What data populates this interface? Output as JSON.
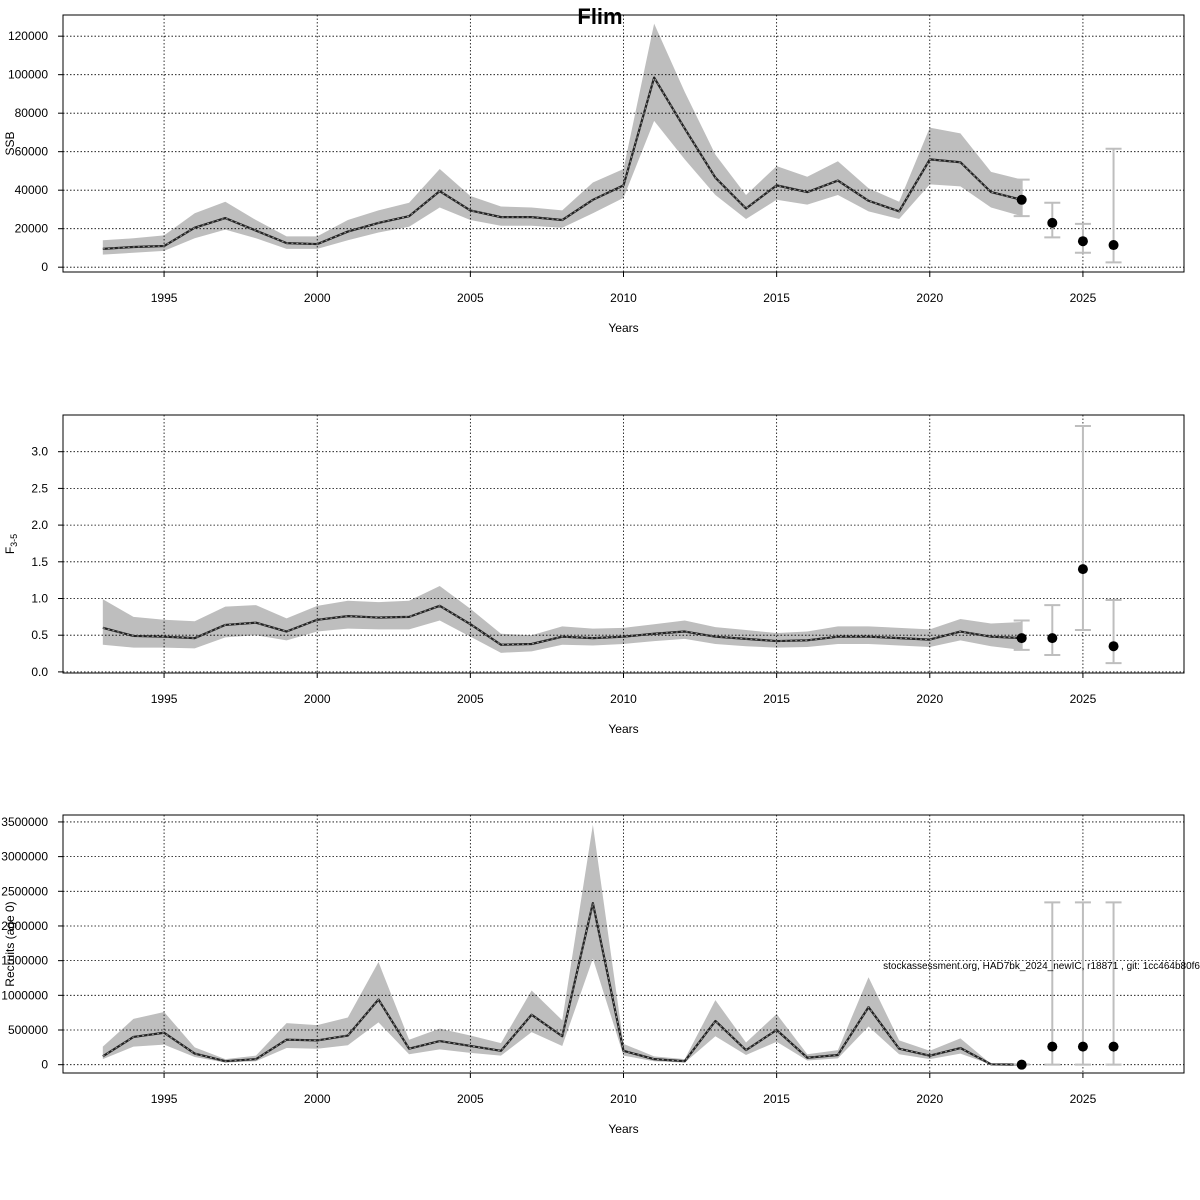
{
  "title": "Flim",
  "footer_note": "stockassessment.org, HAD7bk_2024_newIC, r18871 , git: 1cc464b80f6",
  "colors": {
    "band": "#bebebe",
    "line": "#000000",
    "point": "#000000",
    "errorbar": "#bebebe",
    "grid": "#000000"
  },
  "chart_data": [
    {
      "type": "line",
      "name": "ssb",
      "xlabel": "Years",
      "ylabel": "SSB",
      "xlim": [
        1991.7,
        2028.3
      ],
      "ylim": [
        -2500,
        131000
      ],
      "x_ticks": [
        1995,
        2000,
        2005,
        2010,
        2015,
        2020,
        2025
      ],
      "y_ticks": [
        0,
        20000,
        40000,
        60000,
        80000,
        100000,
        120000
      ],
      "y_tick_labels": [
        "0",
        "20000",
        "40000",
        "60000",
        "80000",
        "100000",
        "120000"
      ],
      "grid": true,
      "x": [
        1993,
        1994,
        1995,
        1996,
        1997,
        1998,
        1999,
        2000,
        2001,
        2002,
        2003,
        2004,
        2005,
        2006,
        2007,
        2008,
        2009,
        2010,
        2011,
        2012,
        2013,
        2014,
        2015,
        2016,
        2017,
        2018,
        2019,
        2020,
        2021,
        2022,
        2023
      ],
      "estimate": [
        9500,
        10500,
        11000,
        20500,
        25500,
        19000,
        12500,
        12000,
        18500,
        23000,
        26500,
        39500,
        29500,
        26000,
        26000,
        24500,
        35000,
        42500,
        98500,
        72000,
        46500,
        30500,
        42500,
        39000,
        45000,
        34500,
        29000,
        56000,
        54500,
        39000,
        35000
      ],
      "lower": [
        6500,
        7500,
        8500,
        15000,
        19500,
        15000,
        9500,
        9500,
        14000,
        18000,
        21000,
        31000,
        24500,
        21500,
        21500,
        20500,
        28000,
        36000,
        76000,
        56000,
        37500,
        25000,
        35000,
        32500,
        37500,
        29000,
        25000,
        43000,
        42000,
        31000,
        26500
      ],
      "upper": [
        14000,
        15000,
        16500,
        28000,
        34000,
        24500,
        16000,
        16000,
        24500,
        29500,
        33500,
        51000,
        37000,
        31500,
        31000,
        29500,
        44000,
        51000,
        126500,
        91000,
        58500,
        37500,
        52500,
        47000,
        55000,
        41000,
        34000,
        72500,
        69500,
        49500,
        45500
      ],
      "forecast": {
        "x": [
          2023,
          2024,
          2025,
          2026
        ],
        "median": [
          35000,
          23000,
          13500,
          11500
        ],
        "lower": [
          26500,
          15500,
          7500,
          2500
        ],
        "upper": [
          45500,
          33500,
          22500,
          61500
        ]
      }
    },
    {
      "type": "line",
      "name": "f",
      "xlabel": "Years",
      "ylabel": "F",
      "ylabel_sub": "3-5",
      "xlim": [
        1991.7,
        2028.3
      ],
      "ylim": [
        -0.015,
        3.5
      ],
      "x_ticks": [
        1995,
        2000,
        2005,
        2010,
        2015,
        2020,
        2025
      ],
      "y_ticks": [
        0,
        0.5,
        1.0,
        1.5,
        2.0,
        2.5,
        3.0
      ],
      "y_tick_labels": [
        "0.0",
        "0.5",
        "1.0",
        "1.5",
        "2.0",
        "2.5",
        "3.0"
      ],
      "grid": true,
      "x": [
        1993,
        1994,
        1995,
        1996,
        1997,
        1998,
        1999,
        2000,
        2001,
        2002,
        2003,
        2004,
        2005,
        2006,
        2007,
        2008,
        2009,
        2010,
        2011,
        2012,
        2013,
        2014,
        2015,
        2016,
        2017,
        2018,
        2019,
        2020,
        2021,
        2022,
        2023
      ],
      "estimate": [
        0.6,
        0.49,
        0.48,
        0.46,
        0.64,
        0.67,
        0.55,
        0.71,
        0.76,
        0.74,
        0.75,
        0.9,
        0.65,
        0.37,
        0.38,
        0.48,
        0.46,
        0.48,
        0.52,
        0.55,
        0.48,
        0.45,
        0.42,
        0.43,
        0.48,
        0.48,
        0.46,
        0.44,
        0.55,
        0.48,
        0.46
      ],
      "lower": [
        0.37,
        0.33,
        0.33,
        0.32,
        0.47,
        0.5,
        0.43,
        0.55,
        0.59,
        0.58,
        0.58,
        0.7,
        0.48,
        0.26,
        0.28,
        0.37,
        0.36,
        0.38,
        0.42,
        0.45,
        0.38,
        0.35,
        0.33,
        0.34,
        0.38,
        0.38,
        0.36,
        0.34,
        0.43,
        0.35,
        0.3
      ],
      "upper": [
        0.99,
        0.75,
        0.71,
        0.69,
        0.89,
        0.91,
        0.73,
        0.9,
        0.97,
        0.95,
        0.97,
        1.17,
        0.86,
        0.52,
        0.5,
        0.62,
        0.59,
        0.6,
        0.65,
        0.7,
        0.61,
        0.57,
        0.53,
        0.55,
        0.62,
        0.62,
        0.6,
        0.58,
        0.72,
        0.66,
        0.68
      ],
      "forecast": {
        "x": [
          2023,
          2024,
          2025,
          2026
        ],
        "median": [
          0.46,
          0.46,
          1.4,
          0.35
        ],
        "lower": [
          0.3,
          0.23,
          0.57,
          0.12
        ],
        "upper": [
          0.7,
          0.91,
          3.35,
          0.98
        ]
      }
    },
    {
      "type": "line",
      "name": "recruits",
      "xlabel": "Years",
      "ylabel": "Recruits (age 0)",
      "xlim": [
        1991.7,
        2028.3
      ],
      "ylim": [
        -120000,
        3600000
      ],
      "x_ticks": [
        1995,
        2000,
        2005,
        2010,
        2015,
        2020,
        2025
      ],
      "y_ticks": [
        0,
        500000,
        1000000,
        1500000,
        2000000,
        2500000,
        3000000,
        3500000
      ],
      "y_tick_labels": [
        "0",
        "500000",
        "1000000",
        "1500000",
        "2000000",
        "2500000",
        "3000000",
        "3500000"
      ],
      "grid": true,
      "x": [
        1993,
        1994,
        1995,
        1996,
        1997,
        1998,
        1999,
        2000,
        2001,
        2002,
        2003,
        2004,
        2005,
        2006,
        2007,
        2008,
        2009,
        2010,
        2011,
        2012,
        2013,
        2014,
        2015,
        2016,
        2017,
        2018,
        2019,
        2020,
        2021,
        2022,
        2023
      ],
      "estimate": [
        120000,
        400000,
        460000,
        160000,
        50000,
        80000,
        360000,
        350000,
        420000,
        940000,
        230000,
        340000,
        270000,
        200000,
        720000,
        410000,
        2330000,
        200000,
        80000,
        50000,
        630000,
        210000,
        500000,
        100000,
        140000,
        830000,
        230000,
        130000,
        240000,
        5000,
        0
      ],
      "lower": [
        80000,
        260000,
        290000,
        110000,
        30000,
        50000,
        240000,
        230000,
        280000,
        610000,
        150000,
        220000,
        170000,
        130000,
        470000,
        270000,
        1530000,
        130000,
        50000,
        30000,
        410000,
        140000,
        330000,
        60000,
        90000,
        550000,
        150000,
        80000,
        160000,
        2000,
        0
      ],
      "upper": [
        260000,
        660000,
        760000,
        250000,
        80000,
        130000,
        600000,
        570000,
        680000,
        1480000,
        360000,
        520000,
        420000,
        310000,
        1070000,
        640000,
        3460000,
        300000,
        120000,
        80000,
        930000,
        320000,
        730000,
        150000,
        210000,
        1260000,
        350000,
        200000,
        380000,
        10000,
        5000
      ],
      "forecast": {
        "x": [
          2023,
          2024,
          2025,
          2026
        ],
        "median": [
          0,
          260000,
          260000,
          260000
        ],
        "lower": [
          0,
          0,
          0,
          0
        ],
        "upper": [
          5000,
          2340000,
          2340000,
          2340000
        ]
      }
    }
  ]
}
